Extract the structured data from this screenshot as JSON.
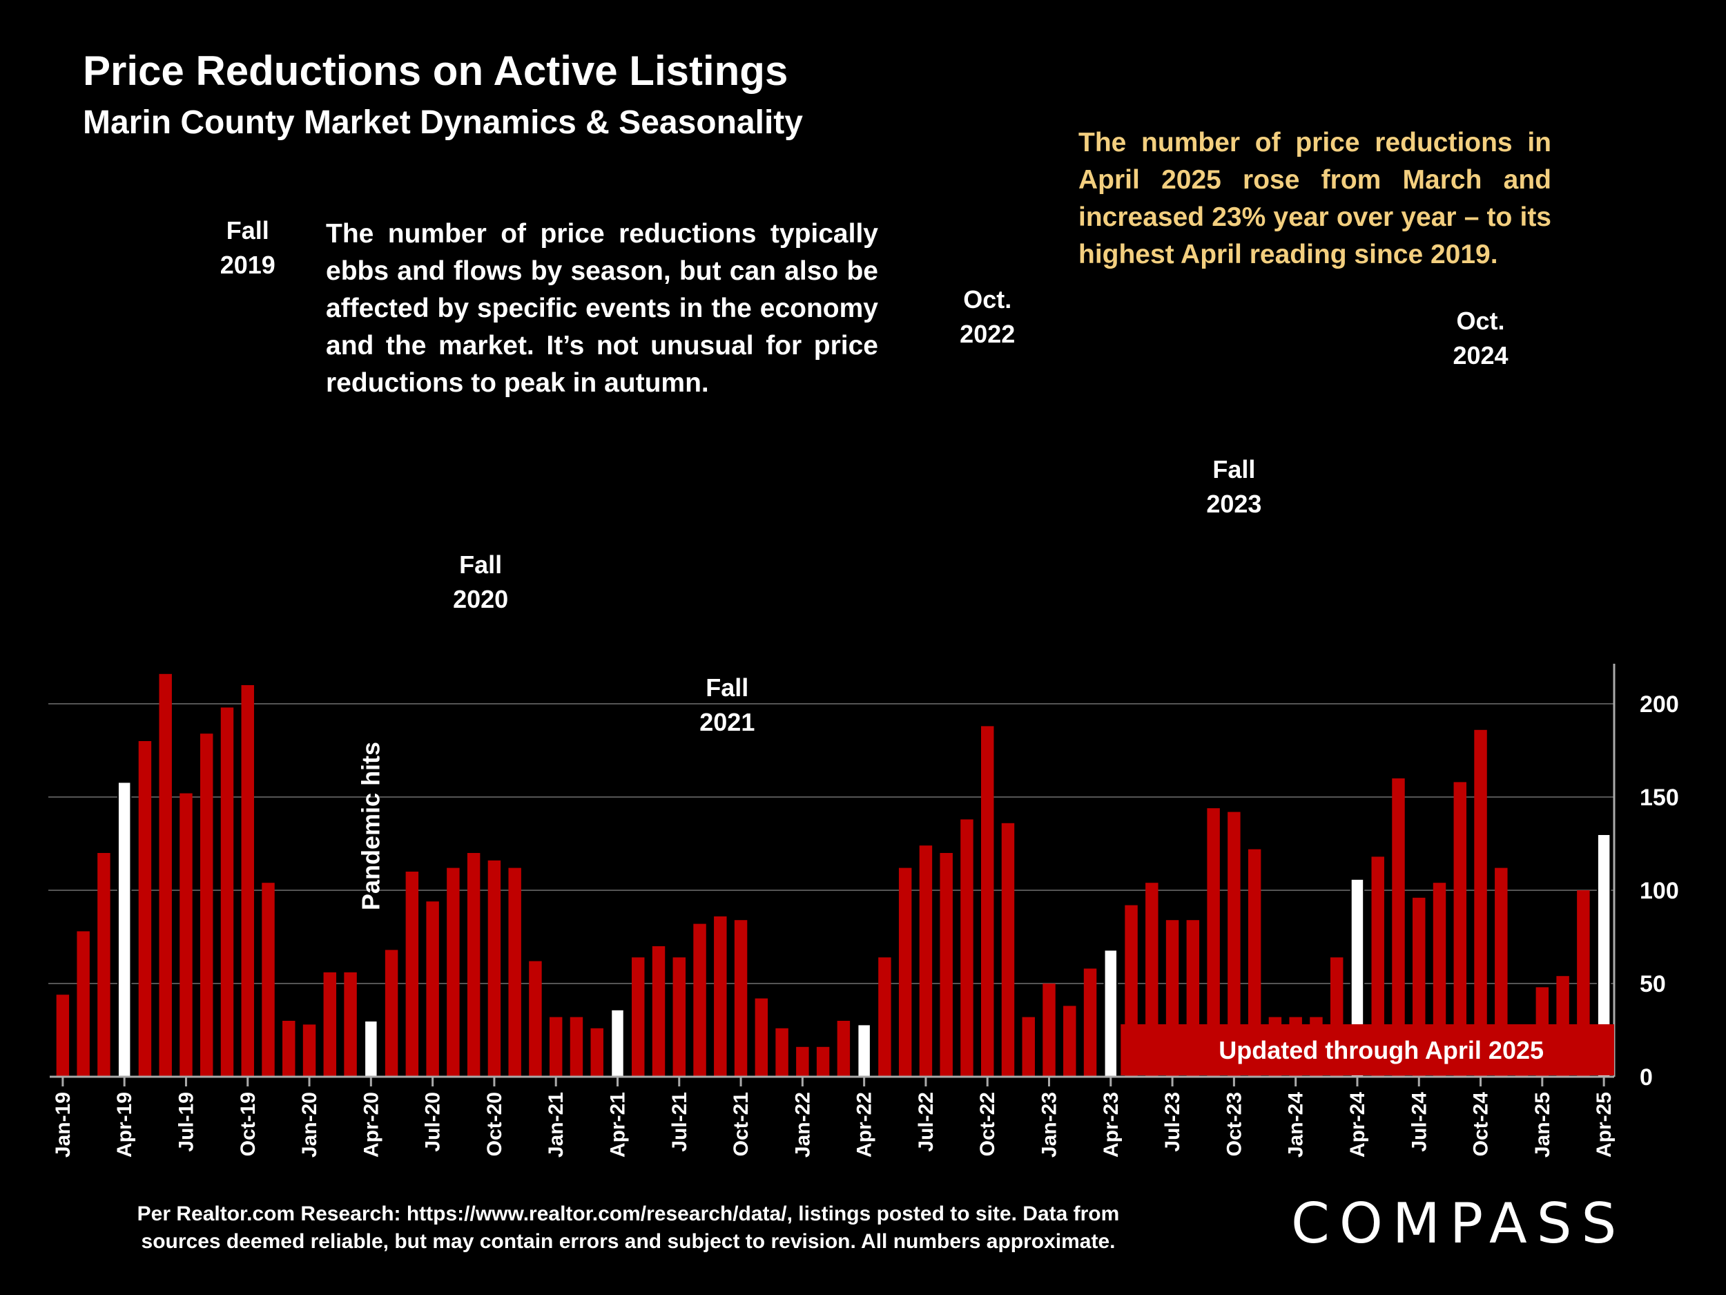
{
  "header": {
    "title": "Price Reductions on Active Listings",
    "subtitle": "Marin County Market Dynamics & Seasonality"
  },
  "note": "The number of price reductions typically ebbs and flows by season, but can also be affected by specific events in the economy and the market. It’s not unusual for price reductions to peak in autumn.",
  "callout": "The number of price reductions in April 2025 rose from March and increased 23% year over year – to its highest April reading since 2019.",
  "footer": {
    "source": "Per Realtor.com Research:  https://www.realtor.com/research/data/, listings posted to site. Data from sources deemed reliable, but may contain errors and subject to revision. All numbers approximate.",
    "logo": "COMPASS"
  },
  "chart_data": {
    "type": "bar",
    "title": "Price Reductions on Active Listings",
    "ylim": [
      0,
      220
    ],
    "yticks": [
      0,
      50,
      100,
      150,
      200
    ],
    "categories": [
      "Jan-19",
      "Feb-19",
      "Mar-19",
      "Apr-19",
      "May-19",
      "Jun-19",
      "Jul-19",
      "Aug-19",
      "Sep-19",
      "Oct-19",
      "Nov-19",
      "Dec-19",
      "Jan-20",
      "Feb-20",
      "Mar-20",
      "Apr-20",
      "May-20",
      "Jun-20",
      "Jul-20",
      "Aug-20",
      "Sep-20",
      "Oct-20",
      "Nov-20",
      "Dec-20",
      "Jan-21",
      "Feb-21",
      "Mar-21",
      "Apr-21",
      "May-21",
      "Jun-21",
      "Jul-21",
      "Aug-21",
      "Sep-21",
      "Oct-21",
      "Nov-21",
      "Dec-21",
      "Jan-22",
      "Feb-22",
      "Mar-22",
      "Apr-22",
      "May-22",
      "Jun-22",
      "Jul-22",
      "Aug-22",
      "Sep-22",
      "Oct-22",
      "Nov-22",
      "Dec-22",
      "Jan-23",
      "Feb-23",
      "Mar-23",
      "Apr-23",
      "May-23",
      "Jun-23",
      "Jul-23",
      "Aug-23",
      "Sep-23",
      "Oct-23",
      "Nov-23",
      "Dec-23",
      "Jan-24",
      "Feb-24",
      "Mar-24",
      "Apr-24",
      "May-24",
      "Jun-24",
      "Jul-24",
      "Aug-24",
      "Sep-24",
      "Oct-24",
      "Nov-24",
      "Dec-24",
      "Jan-25",
      "Feb-25",
      "Mar-25",
      "Apr-25"
    ],
    "values": [
      44,
      78,
      120,
      158,
      180,
      216,
      152,
      184,
      198,
      210,
      104,
      30,
      28,
      56,
      56,
      30,
      68,
      110,
      94,
      112,
      120,
      116,
      112,
      62,
      32,
      32,
      26,
      36,
      64,
      70,
      64,
      82,
      86,
      84,
      42,
      26,
      16,
      16,
      30,
      28,
      64,
      112,
      124,
      120,
      138,
      188,
      136,
      32,
      50,
      38,
      58,
      68,
      92,
      104,
      84,
      84,
      144,
      142,
      122,
      32,
      32,
      32,
      64,
      106,
      118,
      160,
      96,
      104,
      158,
      186,
      112,
      28,
      48,
      54,
      100,
      130
    ],
    "highlight_color": "#ffffff",
    "bar_color": "#c00000",
    "xtick_labels": [
      "Jan-19",
      "Apr-19",
      "Jul-19",
      "Oct-19",
      "Jan-20",
      "Apr-20",
      "Jul-20",
      "Oct-20",
      "Jan-21",
      "Apr-21",
      "Jul-21",
      "Oct-21",
      "Jan-22",
      "Apr-22",
      "Jul-22",
      "Oct-22",
      "Jan-23",
      "Apr-23",
      "Jul-23",
      "Oct-23",
      "Jan-24",
      "Apr-24",
      "Jul-24",
      "Oct-24",
      "Jan-25",
      "Apr-25"
    ],
    "annotations": [
      {
        "category": "Oct-19",
        "lines": [
          "Fall",
          "2019"
        ]
      },
      {
        "category": "Sep-20",
        "lines": [
          "Fall",
          "2020"
        ]
      },
      {
        "category": "Sep-21",
        "lines": [
          "Fall",
          "2021"
        ]
      },
      {
        "category": "Oct-22",
        "lines": [
          "Oct.",
          "2022"
        ]
      },
      {
        "category": "Oct-23",
        "lines": [
          "Fall",
          "2023"
        ]
      },
      {
        "category": "Oct-24",
        "lines": [
          "Oct.",
          "2024"
        ]
      }
    ],
    "pandemic_label": "Pandemic hits",
    "updated_label": "Updated through April 2025"
  }
}
